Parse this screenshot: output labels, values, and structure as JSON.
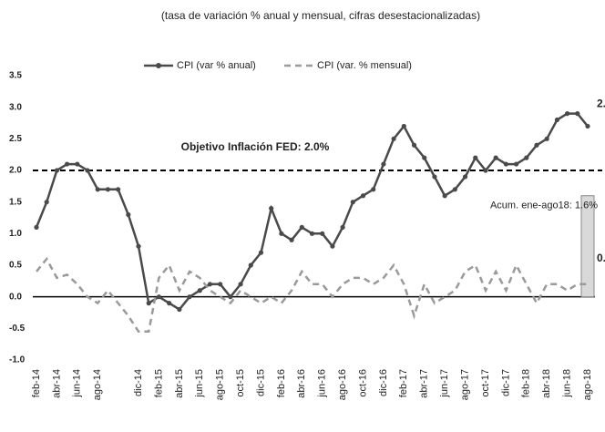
{
  "chart_data": {
    "type": "line",
    "title": "(tasa de variación % anual y mensual, cifras desestacionalizadas)",
    "categories": [
      "feb-14",
      null,
      "abr-14",
      null,
      "jun-14",
      null,
      "ago-14",
      null,
      null,
      null,
      "dic-14",
      null,
      "feb-15",
      null,
      "abr-15",
      null,
      "jun-15",
      null,
      "ago-15",
      null,
      "oct-15",
      null,
      "dic-15",
      null,
      "feb-16",
      null,
      "abr-16",
      null,
      "jun-16",
      null,
      "ago-16",
      null,
      "oct-16",
      null,
      "dic-16",
      null,
      "feb-17",
      null,
      "abr-17",
      null,
      "jun-17",
      null,
      "ago-17",
      null,
      "oct-17",
      null,
      "dic-17",
      null,
      "feb-18",
      null,
      "abr-18",
      null,
      "jun-18",
      null,
      "ago-18"
    ],
    "series": [
      {
        "name": "CPI (var % anual)",
        "color": "#4a4a4a",
        "style": "solid",
        "values": [
          1.1,
          1.5,
          2.0,
          2.1,
          2.1,
          2.0,
          1.7,
          1.7,
          1.7,
          1.3,
          0.8,
          -0.1,
          0.0,
          -0.1,
          -0.2,
          0.0,
          0.1,
          0.2,
          0.2,
          0.0,
          0.2,
          0.5,
          0.7,
          1.4,
          1.0,
          0.9,
          1.1,
          1.0,
          1.0,
          0.8,
          1.1,
          1.5,
          1.6,
          1.7,
          2.1,
          2.5,
          2.7,
          2.4,
          2.2,
          1.9,
          1.6,
          1.7,
          1.9,
          2.2,
          2.0,
          2.2,
          2.1,
          2.1,
          2.2,
          2.4,
          2.5,
          2.8,
          2.9,
          2.9,
          2.7
        ]
      },
      {
        "name": "CPI (var. % mensual)",
        "color": "#9a9a9a",
        "style": "dashed",
        "values": [
          0.4,
          0.6,
          0.3,
          0.35,
          0.2,
          0.0,
          -0.1,
          0.1,
          -0.1,
          -0.3,
          -0.55,
          -0.55,
          0.3,
          0.5,
          0.1,
          0.4,
          0.3,
          0.1,
          0.0,
          -0.1,
          0.1,
          0.0,
          -0.1,
          0.0,
          -0.1,
          0.1,
          0.4,
          0.2,
          0.2,
          0.0,
          0.2,
          0.3,
          0.3,
          0.2,
          0.3,
          0.5,
          0.2,
          -0.3,
          0.2,
          -0.1,
          0.0,
          0.1,
          0.4,
          0.5,
          0.1,
          0.4,
          0.1,
          0.5,
          0.2,
          -0.1,
          0.2,
          0.2,
          0.1,
          0.2,
          0.2
        ]
      }
    ],
    "ylim": [
      -1.0,
      3.5
    ],
    "yticks": [
      {
        "value": -1,
        "label": "-1.0"
      },
      -0.5,
      {
        "value": 0,
        "label": "0.0"
      },
      0.5,
      {
        "value": 1,
        "label": "1.0"
      },
      1.5,
      {
        "value": 2,
        "label": "2.0"
      },
      2.5,
      {
        "value": 3,
        "label": "3.0"
      },
      3.5
    ],
    "reference_line": {
      "value": 2.0,
      "label": "Objetivo Inflación FED: 2.0%"
    },
    "accumulated_bar": {
      "value": 1.6,
      "label": "Acum. ene-ago18: 1.6%"
    }
  }
}
